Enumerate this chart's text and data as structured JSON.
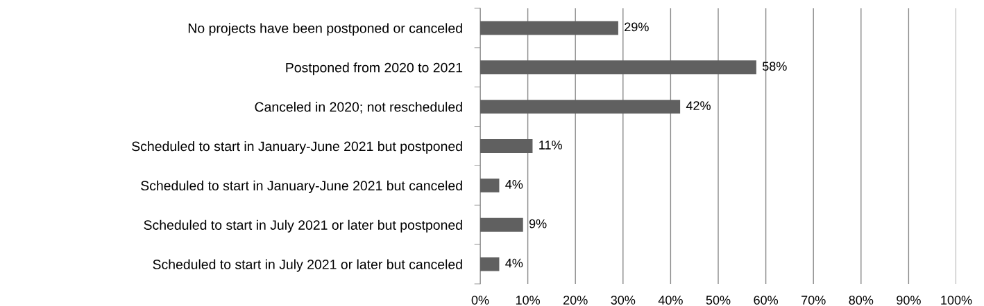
{
  "chart_data": {
    "type": "bar",
    "orientation": "horizontal",
    "categories": [
      "No projects have been postponed or canceled",
      "Postponed from 2020 to 2021",
      "Canceled in 2020; not rescheduled",
      "Scheduled to start in January-June 2021 but postponed",
      "Scheduled to start in January-June 2021 but canceled",
      "Scheduled to start in July 2021 or later but postponed",
      "Scheduled to start in July 2021 or later but canceled"
    ],
    "values": [
      29,
      58,
      42,
      11,
      4,
      9,
      4
    ],
    "value_labels": [
      "29%",
      "58%",
      "42%",
      "11%",
      "4%",
      "9%",
      "4%"
    ],
    "color": "#606060",
    "xlim": [
      0,
      100
    ],
    "xticks": [
      {
        "value": 0,
        "label": "0%"
      },
      {
        "value": 10,
        "label": "10%"
      },
      {
        "value": 20,
        "label": "20%"
      },
      {
        "value": 30,
        "label": "30%"
      },
      {
        "value": 40,
        "label": "40%"
      },
      {
        "value": 50,
        "label": "50%"
      },
      {
        "value": 60,
        "label": "60%"
      },
      {
        "value": 70,
        "label": "70%"
      },
      {
        "value": 80,
        "label": "80%"
      },
      {
        "value": 90,
        "label": "90%"
      },
      {
        "value": 100,
        "label": "100%"
      }
    ],
    "grid": "x"
  }
}
